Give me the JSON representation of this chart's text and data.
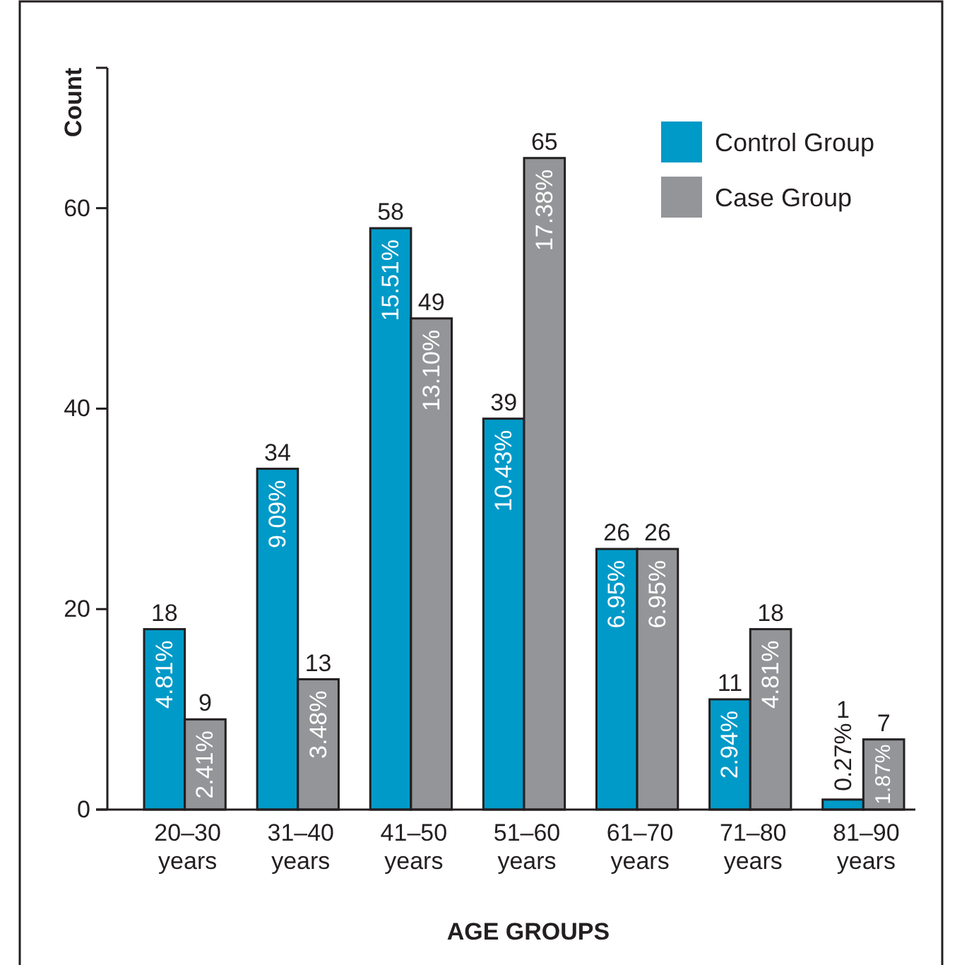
{
  "chart_data": {
    "type": "bar",
    "xlabel": "AGE GROUPS",
    "ylabel": "Count",
    "categories": [
      "20–30 years",
      "31–40 years",
      "41–50 years",
      "51–60 years",
      "61–70 years",
      "71–80 years",
      "81–90 years"
    ],
    "series": [
      {
        "name": "Control Group",
        "color": "#009ac8",
        "values": [
          18,
          34,
          58,
          39,
          26,
          11,
          1
        ]
      },
      {
        "name": "Case Group",
        "color": "#939598",
        "values": [
          9,
          13,
          49,
          65,
          26,
          18,
          7
        ]
      }
    ],
    "annotations": [
      {
        "text": "4.81%",
        "y": 18
      },
      {
        "text": "9.09%",
        "y": 34
      },
      {
        "text": "15.51%",
        "y": 58
      },
      {
        "text": "10.43%",
        "y": 39
      },
      {
        "text": "6.95%",
        "y": 26
      },
      {
        "text": "2.94%",
        "y": 11
      },
      {
        "text": "0.27%",
        "y": 1
      },
      {
        "text": "2.41%",
        "y": 9
      },
      {
        "text": "3.48%",
        "y": 13
      },
      {
        "text": "13.10%",
        "y": 49
      },
      {
        "text": "17.38%",
        "y": 65
      },
      {
        "text": "6.95%",
        "y": 26
      },
      {
        "text": "4.81%",
        "y": 18
      },
      {
        "text": "1.87%",
        "y": 7
      }
    ],
    "ylim": [
      0,
      74
    ],
    "yticks": [
      0,
      20,
      40,
      60,
      {
        "value": 74,
        "label": null
      }
    ],
    "data_labels": true,
    "grid": false,
    "legend": "top right"
  }
}
